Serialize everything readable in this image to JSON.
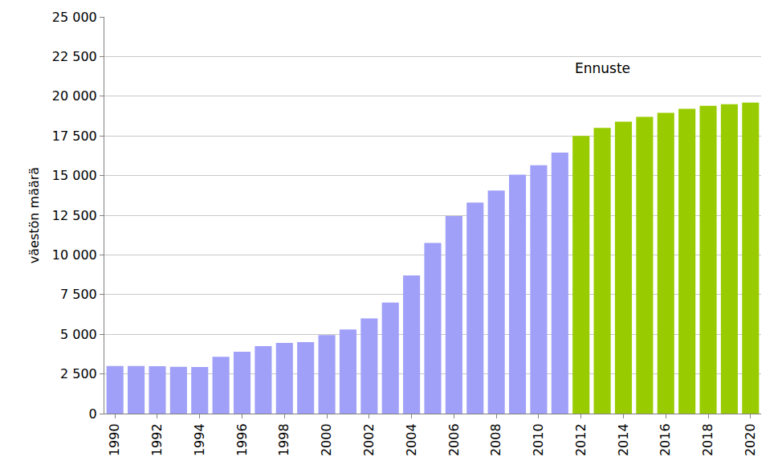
{
  "chart_data": {
    "type": "bar",
    "y_label": "väestön määrä",
    "categories": [
      "1990",
      null,
      "1992",
      null,
      "1994",
      null,
      "1996",
      null,
      "1998",
      null,
      "2000",
      null,
      "2002",
      null,
      "2004",
      null,
      "2006",
      null,
      "2008",
      null,
      "2010",
      null,
      "2012",
      null,
      "2014",
      null,
      "2016",
      null,
      "2018",
      null,
      "2020"
    ],
    "values": [
      3000,
      3000,
      2980,
      2950,
      2930,
      3580,
      3900,
      4250,
      4450,
      4500,
      4950,
      5300,
      6000,
      7000,
      8700,
      10750,
      12450,
      13300,
      14050,
      15050,
      15650,
      16450,
      17500,
      18000,
      18400,
      18700,
      18950,
      19200,
      19400,
      19500,
      19600
    ],
    "colors": [
      "#a0a0f8",
      "#a0a0f8",
      "#a0a0f8",
      "#a0a0f8",
      "#a0a0f8",
      "#a0a0f8",
      "#a0a0f8",
      "#a0a0f8",
      "#a0a0f8",
      "#a0a0f8",
      "#a0a0f8",
      "#a0a0f8",
      "#a0a0f8",
      "#a0a0f8",
      "#a0a0f8",
      "#a0a0f8",
      "#a0a0f8",
      "#a0a0f8",
      "#a0a0f8",
      "#a0a0f8",
      "#a0a0f8",
      "#a0a0f8",
      "#99cc00",
      "#99cc00",
      "#99cc00",
      "#99cc00",
      "#99cc00",
      "#99cc00",
      "#99cc00",
      "#99cc00",
      "#99cc00"
    ],
    "ylim": [
      0,
      25000
    ],
    "yticks": [
      0,
      {
        "value": 2500,
        "label": "2 500"
      },
      {
        "value": 5000,
        "label": "5 000"
      },
      {
        "value": 7500,
        "label": "7 500"
      },
      {
        "value": 10000,
        "label": "10 000"
      },
      {
        "value": 12500,
        "label": "12 500"
      },
      {
        "value": 15000,
        "label": "15 000"
      },
      {
        "value": 17500,
        "label": "17 500"
      },
      {
        "value": 20000,
        "label": "20 000"
      },
      {
        "value": 22500,
        "label": "22 500"
      },
      {
        "value": 25000,
        "label": "25 000"
      }
    ],
    "grid": true,
    "annotations": [
      {
        "text": "Ennuste",
        "x": 23,
        "y": 21750
      }
    ]
  }
}
